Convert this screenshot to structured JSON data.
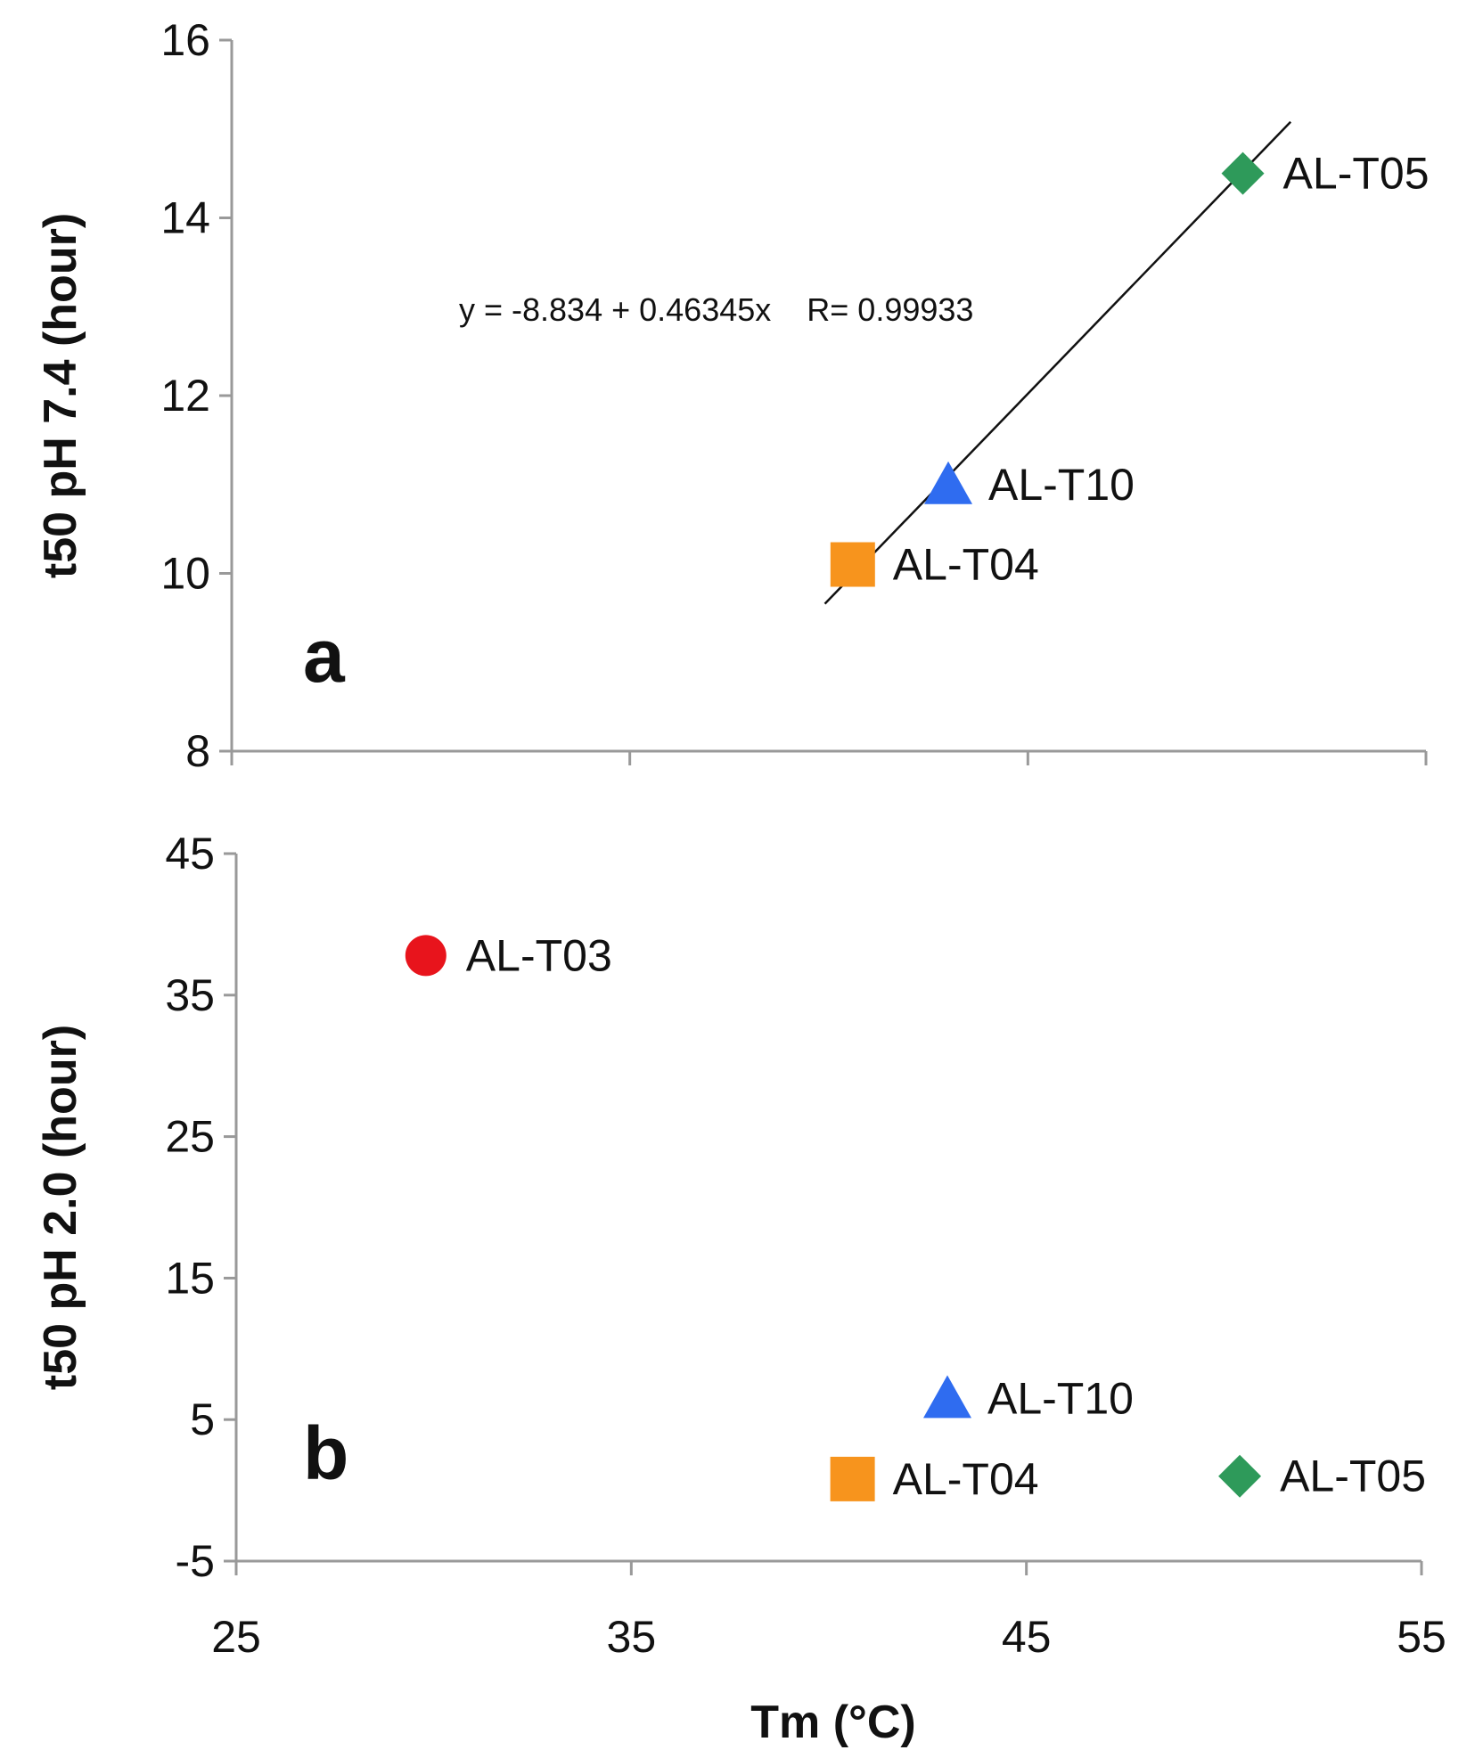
{
  "chart_data": [
    {
      "panel": "a",
      "type": "scatter",
      "ylabel": "t50 pH 7.4 (hour)",
      "xlim": [
        25,
        55
      ],
      "ylim": [
        8,
        16
      ],
      "xticks": [
        25,
        35,
        45,
        55
      ],
      "yticks": [
        8,
        10,
        12,
        14,
        16
      ],
      "points": [
        {
          "label": "AL-T05",
          "x": 50.4,
          "y": 14.5,
          "marker": "diamond",
          "color": "#2e9a5a"
        },
        {
          "label": "AL-T10",
          "x": 43.0,
          "y": 11.0,
          "marker": "triangle",
          "color": "#2f6cf0"
        },
        {
          "label": "AL-T04",
          "x": 40.6,
          "y": 10.1,
          "marker": "square",
          "color": "#f7941d"
        }
      ],
      "fit": {
        "intercept": -8.834,
        "slope": 0.46345,
        "x_range": [
          39.9,
          51.6
        ]
      },
      "annotation": "y = -8.834 + 0.46345x    R= 0.99933"
    },
    {
      "panel": "b",
      "type": "scatter",
      "ylabel": "t50 pH 2.0 (hour)",
      "xlabel": "Tm (°C)",
      "xlim": [
        25,
        55
      ],
      "ylim": [
        -5,
        45
      ],
      "xticks": [
        25,
        35,
        45,
        55
      ],
      "yticks": [
        -5,
        5,
        15,
        25,
        35,
        45
      ],
      "points": [
        {
          "label": "AL-T03",
          "x": 29.8,
          "y": 37.8,
          "marker": "circle",
          "color": "#e8141c"
        },
        {
          "label": "AL-T10",
          "x": 43.0,
          "y": 6.5,
          "marker": "triangle",
          "color": "#2f6cf0"
        },
        {
          "label": "AL-T04",
          "x": 40.6,
          "y": 0.8,
          "marker": "square",
          "color": "#f7941d"
        },
        {
          "label": "AL-T05",
          "x": 50.4,
          "y": 1.0,
          "marker": "diamond",
          "color": "#2e9a5a"
        }
      ]
    }
  ]
}
